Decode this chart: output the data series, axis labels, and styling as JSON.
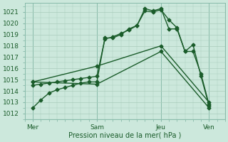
{
  "xlabel": "Pression niveau de la mer( hPa )",
  "bg_color": "#cce8dc",
  "grid_color": "#aaccbb",
  "line_color": "#1a5c2a",
  "ylim": [
    1011.5,
    1021.8
  ],
  "yticks": [
    1012,
    1013,
    1014,
    1015,
    1016,
    1017,
    1018,
    1019,
    1020,
    1021
  ],
  "xtick_labels": [
    "Mer",
    "Sam",
    "Jeu",
    "Ven"
  ],
  "xtick_positions": [
    0,
    24,
    48,
    66
  ],
  "xlim": [
    -3,
    72
  ],
  "vline_positions": [
    0,
    24,
    48,
    66
  ],
  "lines": [
    {
      "x": [
        0,
        3,
        6,
        9,
        12,
        15,
        18,
        21,
        24,
        27,
        30,
        33,
        36,
        39,
        42,
        45,
        48,
        51,
        54,
        57,
        60,
        63,
        66
      ],
      "y": [
        1012.5,
        1013.2,
        1013.8,
        1014.1,
        1014.3,
        1014.5,
        1014.7,
        1014.8,
        1014.8,
        1018.7,
        1018.7,
        1019.0,
        1019.5,
        1019.8,
        1021.3,
        1021.1,
        1021.3,
        1019.5,
        1019.5,
        1017.5,
        1018.1,
        1015.3,
        1012.7
      ],
      "marker": "D",
      "markersize": 2.5,
      "linewidth": 1.0
    },
    {
      "x": [
        0,
        3,
        6,
        9,
        12,
        15,
        18,
        21,
        24,
        27,
        30,
        33,
        36,
        39,
        42,
        45,
        48,
        51,
        54,
        57,
        60,
        63,
        66
      ],
      "y": [
        1014.5,
        1014.6,
        1014.7,
        1014.8,
        1014.9,
        1015.0,
        1015.1,
        1015.2,
        1015.3,
        1018.6,
        1018.8,
        1019.1,
        1019.4,
        1019.8,
        1021.1,
        1021.0,
        1021.2,
        1020.3,
        1019.6,
        1017.5,
        1017.5,
        1015.5,
        1012.8
      ],
      "marker": "D",
      "markersize": 2.5,
      "linewidth": 1.0
    },
    {
      "x": [
        0,
        24,
        48,
        66
      ],
      "y": [
        1014.8,
        1016.2,
        1018.0,
        1013.0
      ],
      "marker": "D",
      "markersize": 2.5,
      "linewidth": 1.0
    },
    {
      "x": [
        0,
        24,
        48,
        66
      ],
      "y": [
        1014.8,
        1014.6,
        1017.5,
        1012.5
      ],
      "marker": "D",
      "markersize": 2.5,
      "linewidth": 1.0
    }
  ]
}
